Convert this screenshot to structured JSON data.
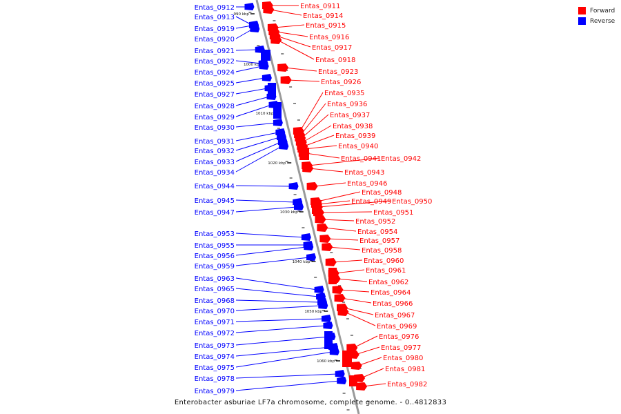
{
  "caption": "Enterobacter asburiae LF7a chromosome, complete genome. - 0..4812833",
  "colors": {
    "forward": "#ff0000",
    "reverse": "#0000ff",
    "axis": "#9a9a9a",
    "tick": "#111111"
  },
  "legend": [
    {
      "label": "Forward",
      "color": "#ff0000"
    },
    {
      "label": "Reverse",
      "color": "#0000ff"
    }
  ],
  "ticks": [
    "990 kbp",
    "1000 kbp",
    "1010 kbp",
    "1020 kbp",
    "1030 kbp",
    "1040 kbp",
    "1050 kbp",
    "1060 kbp"
  ],
  "reverse_genes": [
    "Entas_0912",
    "Entas_0913",
    "Entas_0919",
    "Entas_0920",
    "Entas_0921",
    "Entas_0922",
    "Entas_0924",
    "Entas_0925",
    "Entas_0927",
    "Entas_0928",
    "Entas_0929",
    "Entas_0930",
    "Entas_0931",
    "Entas_0932",
    "Entas_0933",
    "Entas_0934",
    "Entas_0944",
    "Entas_0945",
    "Entas_0947",
    "Entas_0953",
    "Entas_0955",
    "Entas_0956",
    "Entas_0959",
    "Entas_0963",
    "Entas_0965",
    "Entas_0968",
    "Entas_0970",
    "Entas_0971",
    "Entas_0972",
    "Entas_0973",
    "Entas_0974",
    "Entas_0975",
    "Entas_0978",
    "Entas_0979"
  ],
  "forward_genes": [
    "Entas_0911",
    "Entas_0914",
    "Entas_0915",
    "Entas_0916",
    "Entas_0917",
    "Entas_0918",
    "Entas_0923",
    "Entas_0926",
    "Entas_0935",
    "Entas_0936",
    "Entas_0937",
    "Entas_0938",
    "Entas_0939",
    "Entas_0940",
    "Entas_0941",
    "Entas_0942",
    "Entas_0943",
    "Entas_0946",
    "Entas_0948",
    "Entas_0949",
    "Entas_0950",
    "Entas_0951",
    "Entas_0952",
    "Entas_0954",
    "Entas_0957",
    "Entas_0958",
    "Entas_0960",
    "Entas_0961",
    "Entas_0962",
    "Entas_0964",
    "Entas_0966",
    "Entas_0967",
    "Entas_0969",
    "Entas_0976",
    "Entas_0977",
    "Entas_0980",
    "Entas_0981",
    "Entas_0982"
  ]
}
